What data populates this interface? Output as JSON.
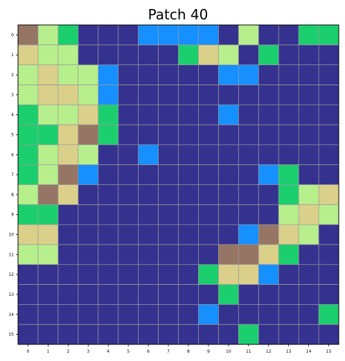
{
  "chart_data": {
    "type": "heatmap",
    "title": "Patch 40",
    "rows": 16,
    "cols": 16,
    "xticks": [
      "0",
      "1",
      "2",
      "3",
      "4",
      "5",
      "6",
      "7",
      "8",
      "9",
      "10",
      "11",
      "12",
      "13",
      "14",
      "15"
    ],
    "yticks": [
      "0",
      "1",
      "2",
      "3",
      "4",
      "5",
      "6",
      "7",
      "8",
      "9",
      "10",
      "11",
      "12",
      "13",
      "14",
      "15"
    ],
    "grid": true,
    "palette": {
      "0": "#35318f",
      "1": "#168fff",
      "2": "#1ccf6e",
      "3": "#b7ef8c",
      "4": "#dbd08a",
      "5": "#967564"
    },
    "grid_color": "#9a9a9a",
    "values": [
      [
        5,
        3,
        2,
        0,
        0,
        0,
        1,
        1,
        1,
        1,
        0,
        3,
        0,
        0,
        2,
        2
      ],
      [
        4,
        3,
        3,
        0,
        0,
        0,
        0,
        0,
        2,
        4,
        3,
        0,
        2,
        0,
        0,
        0
      ],
      [
        3,
        4,
        3,
        3,
        1,
        0,
        0,
        0,
        0,
        0,
        1,
        1,
        0,
        0,
        0,
        0
      ],
      [
        3,
        4,
        4,
        3,
        1,
        0,
        0,
        0,
        0,
        0,
        0,
        0,
        0,
        0,
        0,
        0
      ],
      [
        2,
        3,
        3,
        4,
        2,
        0,
        0,
        0,
        0,
        0,
        1,
        0,
        0,
        0,
        0,
        0
      ],
      [
        2,
        2,
        4,
        5,
        2,
        0,
        0,
        0,
        0,
        0,
        0,
        0,
        0,
        0,
        0,
        0
      ],
      [
        2,
        3,
        4,
        3,
        0,
        0,
        1,
        0,
        0,
        0,
        0,
        0,
        0,
        0,
        0,
        0
      ],
      [
        2,
        3,
        5,
        1,
        0,
        0,
        0,
        0,
        0,
        0,
        0,
        0,
        1,
        2,
        0,
        0
      ],
      [
        3,
        5,
        4,
        0,
        0,
        0,
        0,
        0,
        0,
        0,
        0,
        0,
        0,
        2,
        3,
        4
      ],
      [
        2,
        2,
        0,
        0,
        0,
        0,
        0,
        0,
        0,
        0,
        0,
        0,
        0,
        3,
        4,
        3
      ],
      [
        4,
        4,
        0,
        0,
        0,
        0,
        0,
        0,
        0,
        0,
        0,
        1,
        5,
        4,
        3,
        0
      ],
      [
        3,
        3,
        0,
        0,
        0,
        0,
        0,
        0,
        0,
        0,
        5,
        5,
        4,
        2,
        0,
        0
      ],
      [
        0,
        0,
        0,
        0,
        0,
        0,
        0,
        0,
        0,
        2,
        4,
        4,
        1,
        0,
        0,
        0
      ],
      [
        0,
        0,
        0,
        0,
        0,
        0,
        0,
        0,
        0,
        0,
        2,
        0,
        0,
        0,
        0,
        0
      ],
      [
        0,
        0,
        0,
        0,
        0,
        0,
        0,
        0,
        0,
        1,
        0,
        0,
        0,
        0,
        0,
        2
      ],
      [
        0,
        0,
        0,
        0,
        0,
        0,
        0,
        0,
        0,
        0,
        0,
        2,
        0,
        0,
        0,
        0
      ]
    ]
  }
}
